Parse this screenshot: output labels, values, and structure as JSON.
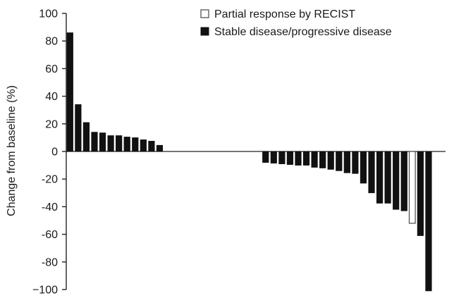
{
  "chart_data": {
    "type": "bar",
    "title": "",
    "xlabel": "",
    "ylabel": "Change from baseline (%)",
    "ylim": [
      -100,
      100
    ],
    "yticks": [
      100,
      80,
      60,
      40,
      20,
      0,
      -20,
      -40,
      -60,
      -80,
      -100
    ],
    "ytick_labels": [
      "100",
      "80",
      "60",
      "40",
      "20",
      "0",
      "-20",
      "-40",
      "-60",
      "-80",
      "−100"
    ],
    "grid": false,
    "legend_position": "top-right",
    "series": [
      {
        "name": "Partial response by RECIST",
        "color": "#ffffff",
        "stroke": "#555555"
      },
      {
        "name": "Stable disease/progressive disease",
        "color": "#111111",
        "stroke": "#111111"
      }
    ],
    "bars": [
      {
        "value": 86,
        "series": 1
      },
      {
        "value": 34,
        "series": 1
      },
      {
        "value": 21,
        "series": 1
      },
      {
        "value": 14,
        "series": 1
      },
      {
        "value": 13.5,
        "series": 1
      },
      {
        "value": 11.5,
        "series": 1
      },
      {
        "value": 11.5,
        "series": 1
      },
      {
        "value": 10.5,
        "series": 1
      },
      {
        "value": 10,
        "series": 1
      },
      {
        "value": 8.5,
        "series": 1
      },
      {
        "value": 7.5,
        "series": 1
      },
      {
        "value": 4.5,
        "series": 1
      },
      {
        "value": 0,
        "series": 1
      },
      {
        "value": 0,
        "series": 1
      },
      {
        "value": 0,
        "series": 1
      },
      {
        "value": 0,
        "series": 1
      },
      {
        "value": 0,
        "series": 1
      },
      {
        "value": 0,
        "series": 1
      },
      {
        "value": 0,
        "series": 1
      },
      {
        "value": 0,
        "series": 1
      },
      {
        "value": 0,
        "series": 1
      },
      {
        "value": 0,
        "series": 1
      },
      {
        "value": 0,
        "series": 1
      },
      {
        "value": 0,
        "series": 1
      },
      {
        "value": -8,
        "series": 1
      },
      {
        "value": -8.5,
        "series": 1
      },
      {
        "value": -9,
        "series": 1
      },
      {
        "value": -9.5,
        "series": 1
      },
      {
        "value": -10,
        "series": 1
      },
      {
        "value": -10,
        "series": 1
      },
      {
        "value": -11.5,
        "series": 1
      },
      {
        "value": -12,
        "series": 1
      },
      {
        "value": -13,
        "series": 1
      },
      {
        "value": -14,
        "series": 1
      },
      {
        "value": -15.5,
        "series": 1
      },
      {
        "value": -16,
        "series": 1
      },
      {
        "value": -23,
        "series": 1
      },
      {
        "value": -30,
        "series": 1
      },
      {
        "value": -37.5,
        "series": 1
      },
      {
        "value": -37.5,
        "series": 1
      },
      {
        "value": -42,
        "series": 1
      },
      {
        "value": -43,
        "series": 1
      },
      {
        "value": -52,
        "series": 0
      },
      {
        "value": -61,
        "series": 1
      },
      {
        "value": -101,
        "series": 1
      }
    ]
  }
}
